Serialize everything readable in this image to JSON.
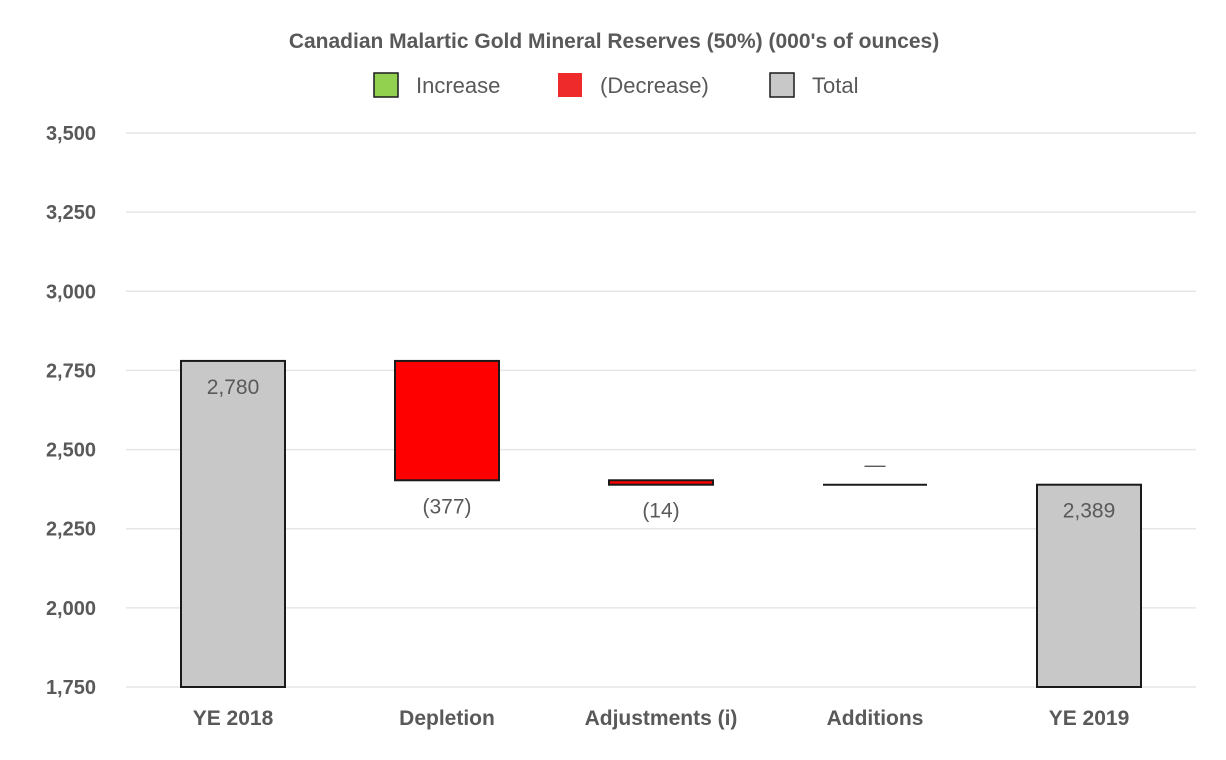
{
  "chart_data": {
    "type": "waterfall",
    "title": "Canadian Malartic Gold Mineral Reserves (50%) (000's of ounces)",
    "legend": {
      "placement": "top-center",
      "items": [
        {
          "label": "Increase",
          "color": "#92d050"
        },
        {
          "label": "(Decrease)",
          "color": "#ee2a2a"
        },
        {
          "label": "Total",
          "color": "#c8c8c8"
        }
      ]
    },
    "ylim": [
      1750,
      3500
    ],
    "yticks": [
      1750,
      2000,
      2250,
      2500,
      2750,
      3000,
      3250,
      3500
    ],
    "ytick_labels": [
      "1,750",
      "2,000",
      "2,250",
      "2,500",
      "2,750",
      "3,000",
      "3,250",
      "3,500"
    ],
    "grid": true,
    "categories": [
      "YE 2018",
      "Depletion",
      "Adjustments (i)",
      "Additions",
      "YE 2019"
    ],
    "steps": [
      {
        "category": "YE 2018",
        "kind": "total",
        "value": 2780,
        "label": "2,780",
        "label_position": "inside-top"
      },
      {
        "category": "Depletion",
        "kind": "decrease",
        "value": -377,
        "label": "(377)",
        "label_position": "below"
      },
      {
        "category": "Adjustments (i)",
        "kind": "decrease",
        "value": -14,
        "label": "(14)",
        "label_position": "below"
      },
      {
        "category": "Additions",
        "kind": "increase",
        "value": 0,
        "label": "—",
        "label_position": "above"
      },
      {
        "category": "YE 2019",
        "kind": "total",
        "value": 2389,
        "label": "2,389",
        "label_position": "inside-top"
      }
    ],
    "colors": {
      "total": "#c8c8c8",
      "decrease": "#ff0000",
      "increase": "#92d050",
      "outline": "#1a1a1a",
      "grid": "#e6e6e6",
      "text": "#595959"
    }
  }
}
